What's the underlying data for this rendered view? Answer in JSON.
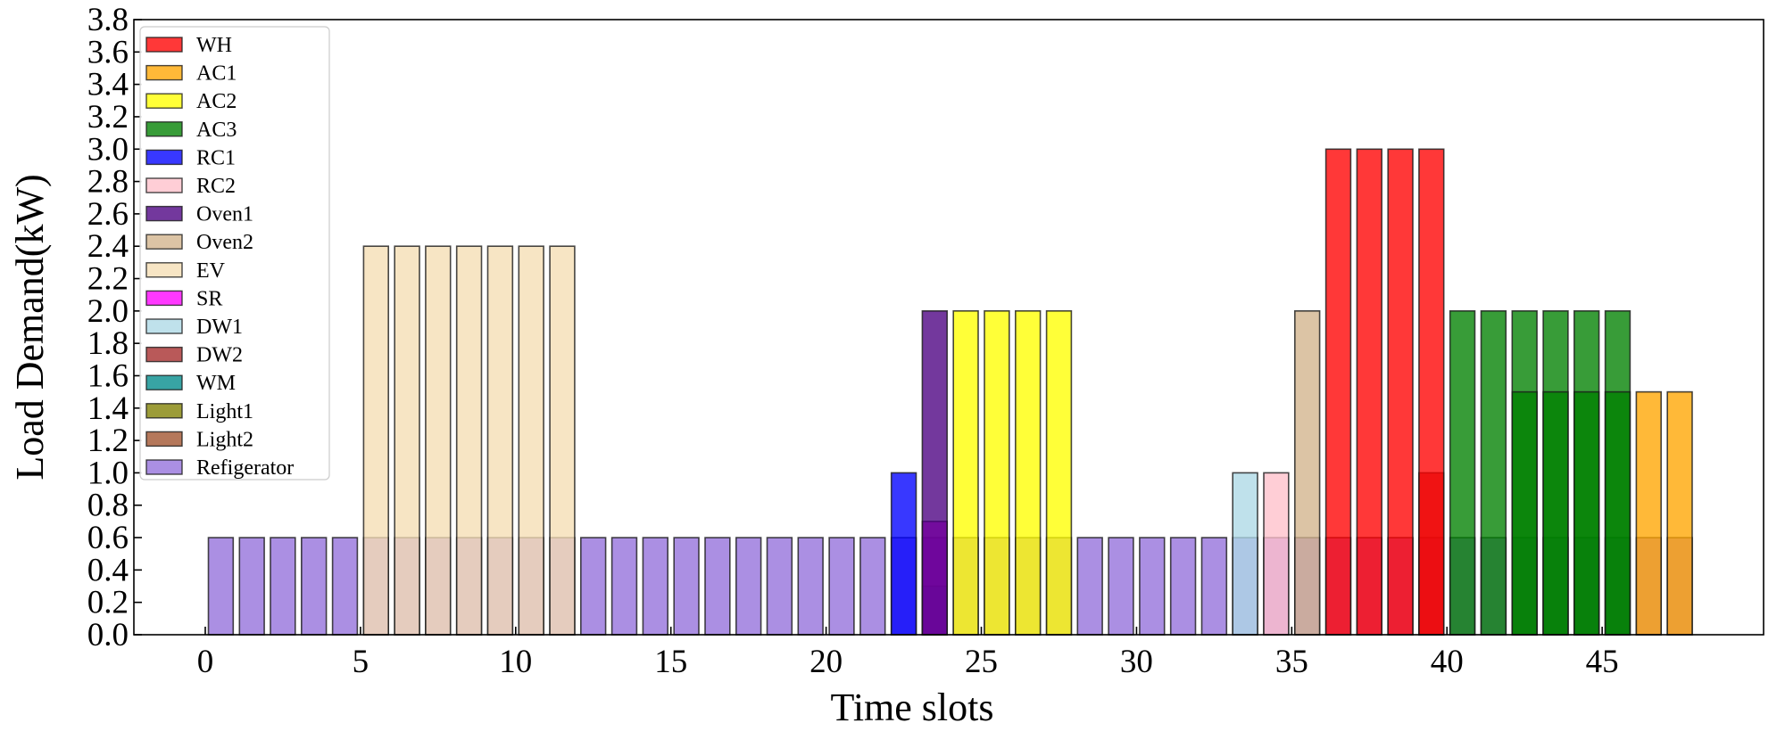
{
  "chart_data": {
    "type": "bar",
    "title": "",
    "xlabel": "Time slots",
    "ylabel": "Load Demand(kW)",
    "xlim": [
      -2.3,
      50.2
    ],
    "ylim": [
      0,
      3.8
    ],
    "xticks": [
      0,
      5,
      10,
      15,
      20,
      25,
      30,
      35,
      40,
      45
    ],
    "yticks": [
      0.0,
      0.2,
      0.4,
      0.6,
      0.8,
      1.0,
      1.2,
      1.4,
      1.6,
      1.8,
      2.0,
      2.2,
      2.4,
      2.6,
      2.8,
      3.0,
      3.2,
      3.4,
      3.6,
      3.8
    ],
    "bar_width_slots": 0.8,
    "legend_position": "top-left",
    "grid": false,
    "series": [
      {
        "name": "WH",
        "color": "#ff0000",
        "bars": [
          {
            "x": 36.5,
            "value": 3.0
          },
          {
            "x": 37.5,
            "value": 3.0
          },
          {
            "x": 38.5,
            "value": 3.0
          },
          {
            "x": 39.5,
            "value": 3.0
          }
        ]
      },
      {
        "name": "AC1",
        "color": "#ffa500",
        "bars": [
          {
            "x": 46.5,
            "value": 1.5
          },
          {
            "x": 47.5,
            "value": 1.5
          }
        ]
      },
      {
        "name": "AC2",
        "color": "#ffff00",
        "bars": [
          {
            "x": 24.5,
            "value": 2.0
          },
          {
            "x": 25.5,
            "value": 2.0
          },
          {
            "x": 26.5,
            "value": 2.0
          },
          {
            "x": 27.5,
            "value": 2.0
          }
        ]
      },
      {
        "name": "AC3",
        "color": "#008000",
        "bars": [
          {
            "x": 40.5,
            "value": 2.0
          },
          {
            "x": 41.5,
            "value": 2.0
          },
          {
            "x": 42.5,
            "value": 2.0
          },
          {
            "x": 43.5,
            "value": 2.0
          },
          {
            "x": 44.5,
            "value": 2.0
          },
          {
            "x": 45.5,
            "value": 2.0
          },
          {
            "x": 42.5,
            "value": 1.5
          },
          {
            "x": 43.5,
            "value": 1.5
          },
          {
            "x": 44.5,
            "value": 1.5
          },
          {
            "x": 45.5,
            "value": 1.5
          }
        ]
      },
      {
        "name": "RC1",
        "color": "#0000ff",
        "bars": [
          {
            "x": 22.5,
            "value": 1.0
          }
        ]
      },
      {
        "name": "RC2",
        "color": "#ffc0cb",
        "bars": [
          {
            "x": 34.5,
            "value": 1.0
          }
        ]
      },
      {
        "name": "Oven1",
        "color": "#4b0082",
        "bars": [
          {
            "x": 23.5,
            "value": 2.0
          }
        ]
      },
      {
        "name": "Oven2",
        "color": "#d2b48c",
        "bars": [
          {
            "x": 35.5,
            "value": 2.0
          }
        ]
      },
      {
        "name": "EV",
        "color": "#f5deb3",
        "bars": [
          {
            "x": 5.5,
            "value": 2.4
          },
          {
            "x": 6.5,
            "value": 2.4
          },
          {
            "x": 7.5,
            "value": 2.4
          },
          {
            "x": 8.5,
            "value": 2.4
          },
          {
            "x": 9.5,
            "value": 2.4
          },
          {
            "x": 10.5,
            "value": 2.4
          },
          {
            "x": 11.5,
            "value": 2.4
          }
        ]
      },
      {
        "name": "SR",
        "color": "#ff00ff",
        "bars": [
          {
            "x": 23.5,
            "value": 0.7
          }
        ]
      },
      {
        "name": "DW1",
        "color": "#add8e6",
        "bars": [
          {
            "x": 33.5,
            "value": 1.0
          }
        ]
      },
      {
        "name": "DW2",
        "color": "#a52a2a",
        "bars": [
          {
            "x": 39.5,
            "value": 1.0
          }
        ]
      },
      {
        "name": "WM",
        "color": "#008b8b",
        "bars": [
          {
            "x": 23.5,
            "value": 0.3
          }
        ]
      },
      {
        "name": "Light1",
        "color": "#808000",
        "bars": []
      },
      {
        "name": "Light2",
        "color": "#a0522d",
        "bars": []
      },
      {
        "name": "Refigerator",
        "color": "#9370db",
        "bars": [
          {
            "x": 0.5,
            "value": 0.6
          },
          {
            "x": 1.5,
            "value": 0.6
          },
          {
            "x": 2.5,
            "value": 0.6
          },
          {
            "x": 3.5,
            "value": 0.6
          },
          {
            "x": 4.5,
            "value": 0.6
          },
          {
            "x": 5.5,
            "value": 0.6
          },
          {
            "x": 6.5,
            "value": 0.6
          },
          {
            "x": 7.5,
            "value": 0.6
          },
          {
            "x": 8.5,
            "value": 0.6
          },
          {
            "x": 9.5,
            "value": 0.6
          },
          {
            "x": 10.5,
            "value": 0.6
          },
          {
            "x": 11.5,
            "value": 0.6
          },
          {
            "x": 12.5,
            "value": 0.6
          },
          {
            "x": 13.5,
            "value": 0.6
          },
          {
            "x": 14.5,
            "value": 0.6
          },
          {
            "x": 15.5,
            "value": 0.6
          },
          {
            "x": 16.5,
            "value": 0.6
          },
          {
            "x": 17.5,
            "value": 0.6
          },
          {
            "x": 18.5,
            "value": 0.6
          },
          {
            "x": 19.5,
            "value": 0.6
          },
          {
            "x": 20.5,
            "value": 0.6
          },
          {
            "x": 21.5,
            "value": 0.6
          },
          {
            "x": 22.5,
            "value": 0.6
          },
          {
            "x": 23.5,
            "value": 0.6
          },
          {
            "x": 24.5,
            "value": 0.6
          },
          {
            "x": 25.5,
            "value": 0.6
          },
          {
            "x": 26.5,
            "value": 0.6
          },
          {
            "x": 27.5,
            "value": 0.6
          },
          {
            "x": 28.5,
            "value": 0.6
          },
          {
            "x": 29.5,
            "value": 0.6
          },
          {
            "x": 30.5,
            "value": 0.6
          },
          {
            "x": 31.5,
            "value": 0.6
          },
          {
            "x": 32.5,
            "value": 0.6
          },
          {
            "x": 33.5,
            "value": 0.6
          },
          {
            "x": 34.5,
            "value": 0.6
          },
          {
            "x": 35.5,
            "value": 0.6
          },
          {
            "x": 36.5,
            "value": 0.6
          },
          {
            "x": 37.5,
            "value": 0.6
          },
          {
            "x": 38.5,
            "value": 0.6
          },
          {
            "x": 39.5,
            "value": 0.6
          },
          {
            "x": 40.5,
            "value": 0.6
          },
          {
            "x": 41.5,
            "value": 0.6
          },
          {
            "x": 42.5,
            "value": 0.6
          },
          {
            "x": 43.5,
            "value": 0.6
          },
          {
            "x": 44.5,
            "value": 0.6
          },
          {
            "x": 45.5,
            "value": 0.6
          },
          {
            "x": 46.5,
            "value": 0.6
          },
          {
            "x": 47.5,
            "value": 0.6
          }
        ]
      }
    ]
  }
}
